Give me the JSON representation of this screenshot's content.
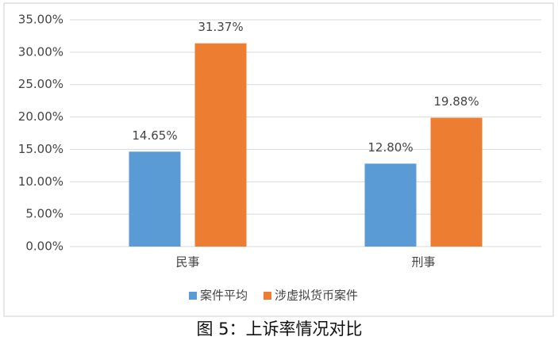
{
  "chart_data": {
    "type": "bar",
    "caption": "图 5：上诉率情况对比",
    "categories": [
      "民事",
      "刑事"
    ],
    "series": [
      {
        "name": "案件平均",
        "color": "#5b9bd5",
        "values": [
          14.65,
          12.8
        ],
        "value_labels": [
          "14.65%",
          "12.80%"
        ]
      },
      {
        "name": "涉虚拟货币案件",
        "color": "#ed7d31",
        "values": [
          31.37,
          19.88
        ],
        "value_labels": [
          "31.37%",
          "19.88%"
        ]
      }
    ],
    "ylim": [
      0,
      35
    ],
    "yticks": [
      {
        "value": 0,
        "label": "0.00%"
      },
      {
        "value": 5,
        "label": "5.00%"
      },
      {
        "value": 10,
        "label": "10.00%"
      },
      {
        "value": 15,
        "label": "15.00%"
      },
      {
        "value": 20,
        "label": "20.00%"
      },
      {
        "value": 25,
        "label": "25.00%"
      },
      {
        "value": 30,
        "label": "30.00%"
      },
      {
        "value": 35,
        "label": "35.00%"
      }
    ],
    "grid": true,
    "legend": "bottom"
  }
}
